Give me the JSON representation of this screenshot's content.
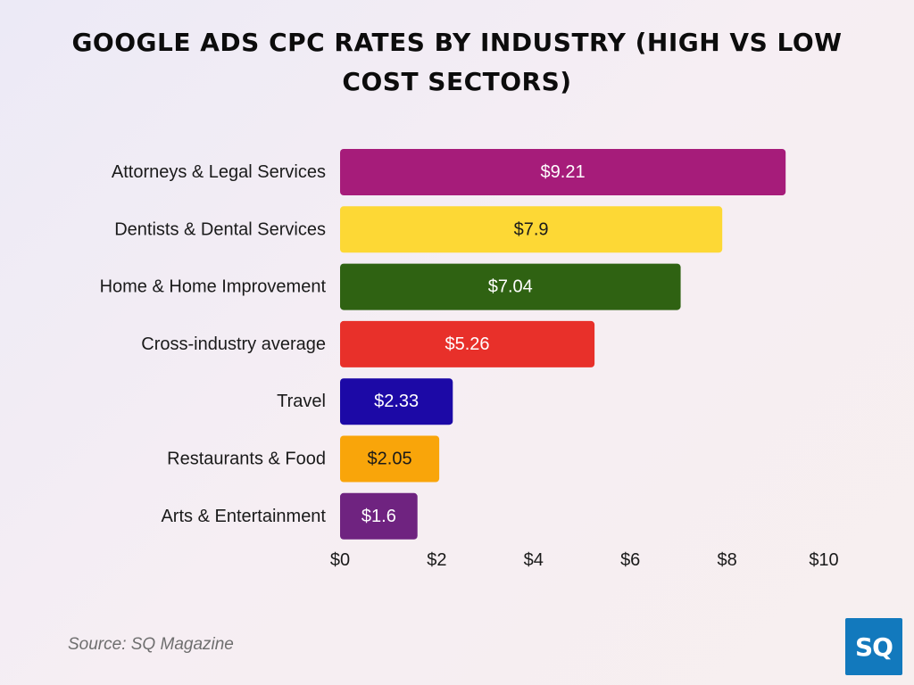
{
  "chart_data": {
    "type": "bar",
    "orientation": "horizontal",
    "title": "GOOGLE ADS CPC RATES BY INDUSTRY (HIGH VS LOW COST SECTORS)",
    "categories": [
      "Attorneys & Legal Services",
      "Dentists & Dental Services",
      "Home & Home Improvement",
      "Cross-industry average",
      "Travel",
      "Restaurants & Food",
      "Arts & Entertainment"
    ],
    "values": [
      9.21,
      7.9,
      7.04,
      5.26,
      2.33,
      2.05,
      1.6
    ],
    "value_labels": [
      "$9.21",
      "$7.9",
      "$7.04",
      "$5.26",
      "$2.33",
      "$2.05",
      "$1.6"
    ],
    "colors": [
      "#a61c7a",
      "#fdd835",
      "#2f6212",
      "#e8302a",
      "#1c09a6",
      "#f9a50a",
      "#6f2380"
    ],
    "label_colors": [
      "#ffffff",
      "#1a1a1a",
      "#ffffff",
      "#ffffff",
      "#ffffff",
      "#1a1a1a",
      "#ffffff"
    ],
    "x_ticks": [
      "$0",
      "$2",
      "$4",
      "$6",
      "$8",
      "$10"
    ],
    "x_tick_values": [
      0,
      2,
      4,
      6,
      8,
      10
    ],
    "xlim": [
      0,
      10
    ],
    "grid": false,
    "legend": "none"
  },
  "source": "Source: SQ Magazine",
  "logo": "SQ"
}
